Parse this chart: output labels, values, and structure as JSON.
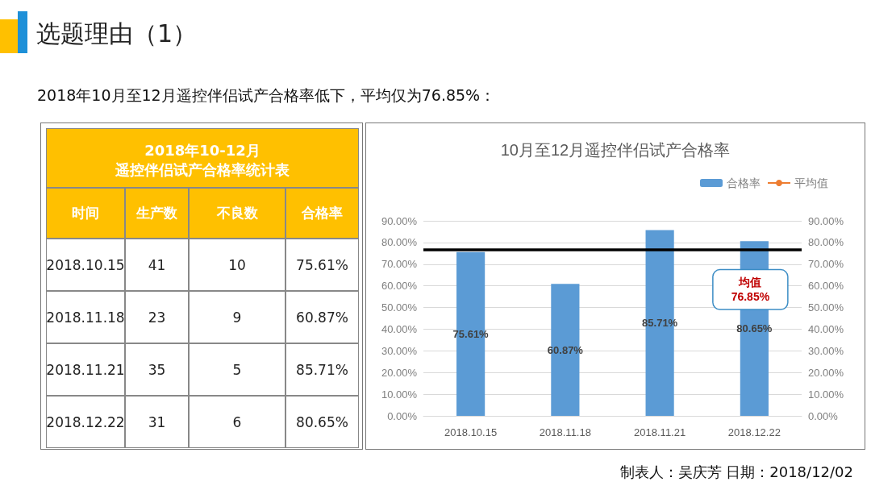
{
  "chart_data": [
    {
      "type": "other",
      "title": "选题理由（1）",
      "subtitle": "2018年10月至12月遥控伴侣试产合格率低下，平均仅为76.85%：",
      "annotations": [
        "2018年10-12月",
        "遥控伴侣试产合格率统计表",
        "时间",
        "生产数",
        "不良数",
        "合格率",
        "2018.10.15",
        "41",
        "10",
        "75.61%",
        "2018.11.18",
        "23",
        "9",
        "60.87%",
        "2018.11.21",
        "35",
        "5",
        "85.71%",
        "2018.12.22",
        "31",
        "6",
        "80.65%",
        "制表人：吴庆芳    日期：2018/12/02"
      ]
    },
    {
      "type": "bar",
      "title": "10月至12月遥控伴侣试产合格率",
      "categories": [
        "2018.10.15",
        "2018.11.18",
        "2018.11.21",
        "2018.12.22"
      ],
      "series": [
        {
          "name": "合格率",
          "type": "bar",
          "color": "#5b9bd5",
          "values": [
            75.61,
            60.87,
            85.71,
            80.65
          ]
        },
        {
          "name": "平均值",
          "type": "line",
          "color": "#ed7d31",
          "values": [
            null,
            null,
            null,
            null
          ]
        }
      ],
      "ref_lines": [
        {
          "axis": "y",
          "value": 76.85,
          "color": "#000000"
        }
      ],
      "value_labels": [
        "75.61%",
        "60.87%",
        "85.71%",
        "80.65%"
      ],
      "ylim": [
        0,
        90
      ],
      "yticks": [
        {
          "value": 0,
          "label": "0.00%"
        },
        {
          "value": 10,
          "label": "10.00%"
        },
        {
          "value": 20,
          "label": "20.00%"
        },
        {
          "value": 30,
          "label": "30.00%"
        },
        {
          "value": 40,
          "label": "40.00%"
        },
        {
          "value": 50,
          "label": "50.00%"
        },
        {
          "value": 60,
          "label": "60.00%"
        },
        {
          "value": 70,
          "label": "70.00%"
        },
        {
          "value": 80,
          "label": "80.00%"
        },
        {
          "value": 90,
          "label": "90.00%"
        }
      ],
      "y2lim": [
        0,
        90
      ],
      "y2ticks": [
        {
          "value": 0,
          "label": "0.00%"
        },
        {
          "value": 10,
          "label": "10.00%"
        },
        {
          "value": 20,
          "label": "20.00%"
        },
        {
          "value": 30,
          "label": "30.00%"
        },
        {
          "value": 40,
          "label": "40.00%"
        },
        {
          "value": 50,
          "label": "50.00%"
        },
        {
          "value": 60,
          "label": "60.00%"
        },
        {
          "value": 70,
          "label": "70.00%"
        },
        {
          "value": 80,
          "label": "80.00%"
        },
        {
          "value": 90,
          "label": "90.00%"
        }
      ],
      "grid": "y",
      "legend": "top right",
      "annotations": [
        {
          "text": "均值\n76.85%",
          "x": "2018.12.22",
          "y": 76.85
        }
      ]
    }
  ]
}
